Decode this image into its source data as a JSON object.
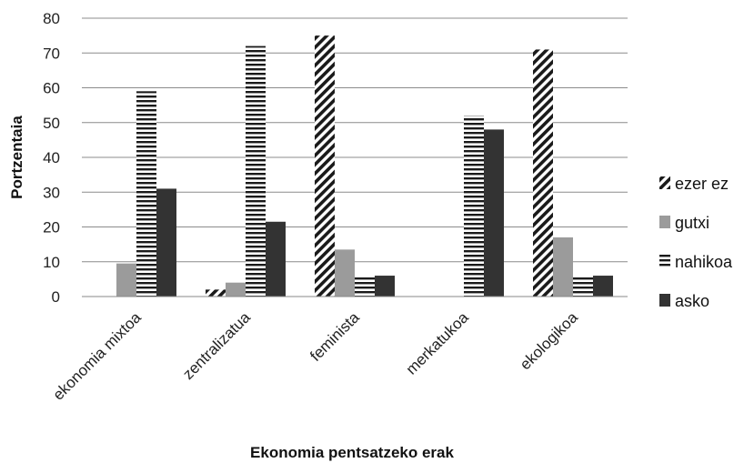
{
  "chart_data": {
    "type": "bar",
    "categories": [
      "ekonomia mixtoa",
      "zentralizatua",
      "feminista",
      "merkatukoa",
      "ekologikoa"
    ],
    "series": [
      {
        "name": "ezer ez",
        "values": [
          0,
          2,
          75,
          0,
          71
        ],
        "pattern": "diagonal",
        "color": "#1a1a1a"
      },
      {
        "name": "gutxi",
        "values": [
          9.5,
          4,
          13.5,
          0,
          17
        ],
        "pattern": "solid",
        "color": "#9b9b9b"
      },
      {
        "name": "nahikoa",
        "values": [
          59,
          72,
          6,
          52,
          6
        ],
        "pattern": "horizontal",
        "color": "#1a1a1a"
      },
      {
        "name": "asko",
        "values": [
          31,
          21.5,
          6,
          48,
          6
        ],
        "pattern": "solid",
        "color": "#333333"
      }
    ],
    "xlabel": "Ekonomia pentsatzeko erak",
    "ylabel": "Portzentaia",
    "ylim": [
      0,
      80
    ],
    "yticks": [
      0,
      10,
      20,
      30,
      40,
      50,
      60,
      70,
      80
    ],
    "grid": true,
    "legend_position": "right"
  }
}
